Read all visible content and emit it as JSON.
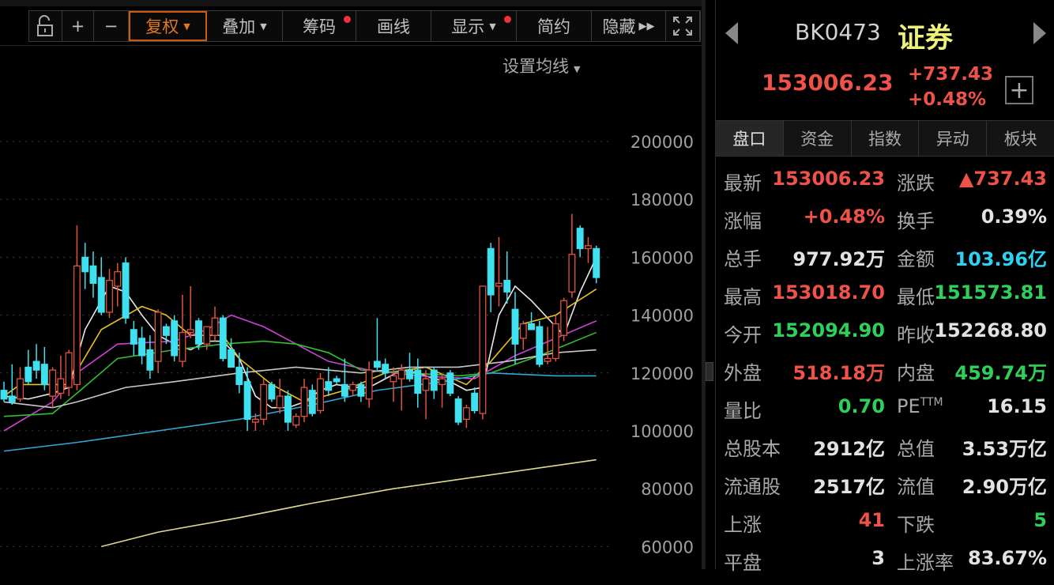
{
  "toolbar": {
    "items": [
      {
        "name": "lock",
        "label": "",
        "icon": "unlock-icon"
      },
      {
        "name": "zoom-in",
        "label": "+"
      },
      {
        "name": "zoom-out",
        "label": "−"
      },
      {
        "name": "fuquan",
        "label": "复权",
        "dropdown": true,
        "active": true
      },
      {
        "name": "overlay",
        "label": "叠加",
        "dropdown": true
      },
      {
        "name": "chips",
        "label": "筹码",
        "dot": true
      },
      {
        "name": "draw",
        "label": "画线"
      },
      {
        "name": "display",
        "label": "显示",
        "dropdown": true,
        "dot": true
      },
      {
        "name": "simple",
        "label": "简约"
      },
      {
        "name": "hide",
        "label": "隐藏",
        "icon": "double-chevron-right-icon"
      },
      {
        "name": "fullscreen",
        "label": "",
        "icon": "fullscreen-icon"
      }
    ],
    "ma_settings": "设置均线"
  },
  "colors": {
    "up": "#e0533d",
    "down": "#3fe0ef",
    "toolbar_active": "#c85d12"
  },
  "chart_data": {
    "type": "candlestick",
    "y_ticks": [
      200000,
      180000,
      160000,
      140000,
      120000,
      100000,
      80000,
      60000
    ],
    "ylim": [
      55000,
      210000
    ],
    "grid": true,
    "candles": [
      [
        114000,
        117000,
        110000,
        111000
      ],
      [
        112000,
        123000,
        109000,
        110000
      ],
      [
        111000,
        122000,
        110000,
        118000
      ],
      [
        122000,
        128000,
        116000,
        117000
      ],
      [
        124000,
        130000,
        118000,
        121000
      ],
      [
        123000,
        129000,
        114000,
        116000
      ],
      [
        112000,
        122000,
        108000,
        121000
      ],
      [
        113000,
        126000,
        111000,
        118000
      ],
      [
        115000,
        128000,
        112000,
        127000
      ],
      [
        116000,
        171000,
        114000,
        157000
      ],
      [
        160000,
        165000,
        149000,
        155000
      ],
      [
        157000,
        162000,
        146000,
        151000
      ],
      [
        153000,
        160000,
        140000,
        141000
      ],
      [
        141000,
        156000,
        139000,
        152000
      ],
      [
        150000,
        158000,
        143000,
        155000
      ],
      [
        158000,
        160000,
        137000,
        139000
      ],
      [
        135000,
        138000,
        126000,
        130000
      ],
      [
        132000,
        136000,
        123000,
        126000
      ],
      [
        128000,
        133000,
        118000,
        121000
      ],
      [
        124000,
        142000,
        120000,
        141000
      ],
      [
        136000,
        137000,
        130000,
        133000
      ],
      [
        138000,
        140000,
        124000,
        126000
      ],
      [
        124000,
        147000,
        122000,
        134000
      ],
      [
        134000,
        150000,
        132000,
        135000
      ],
      [
        138000,
        139000,
        128000,
        130000
      ],
      [
        130000,
        136000,
        128000,
        136000
      ],
      [
        133000,
        143000,
        131000,
        139000
      ],
      [
        139000,
        140000,
        124000,
        125000
      ],
      [
        128000,
        132000,
        122000,
        122000
      ],
      [
        122000,
        127000,
        113000,
        116000
      ],
      [
        117000,
        122000,
        100000,
        104000
      ],
      [
        103000,
        106000,
        100000,
        104000
      ],
      [
        104000,
        118000,
        102000,
        116000
      ],
      [
        116000,
        117000,
        110000,
        111000
      ],
      [
        108000,
        118000,
        106000,
        112000
      ],
      [
        112000,
        114000,
        100000,
        103000
      ],
      [
        102000,
        106000,
        101000,
        105000
      ],
      [
        105000,
        118000,
        103000,
        115000
      ],
      [
        114000,
        116000,
        105000,
        106000
      ],
      [
        107000,
        120000,
        106000,
        118000
      ],
      [
        117000,
        122000,
        112000,
        114000
      ],
      [
        118000,
        119000,
        116000,
        117000
      ],
      [
        116000,
        125000,
        110000,
        112000
      ],
      [
        114000,
        117000,
        112000,
        116000
      ],
      [
        116000,
        117000,
        110000,
        112000
      ],
      [
        111000,
        124000,
        108000,
        121000
      ],
      [
        124000,
        139000,
        121000,
        122000
      ],
      [
        123000,
        125000,
        118000,
        120000
      ],
      [
        117000,
        122000,
        110000,
        119000
      ],
      [
        118000,
        123000,
        107000,
        121000
      ],
      [
        121000,
        127000,
        117000,
        118000
      ],
      [
        121000,
        125000,
        108000,
        113000
      ],
      [
        114000,
        121000,
        104000,
        118000
      ],
      [
        121000,
        122000,
        111000,
        114000
      ],
      [
        116000,
        120000,
        108000,
        118000
      ],
      [
        120000,
        121000,
        112000,
        113000
      ],
      [
        111000,
        112000,
        102000,
        103000
      ],
      [
        104000,
        109000,
        101000,
        108000
      ],
      [
        113000,
        115000,
        106000,
        107000
      ],
      [
        106000,
        150000,
        104000,
        150000
      ],
      [
        163000,
        165000,
        141000,
        147000
      ],
      [
        150000,
        167000,
        143000,
        151000
      ],
      [
        152000,
        162000,
        144000,
        148000
      ],
      [
        142000,
        148000,
        123000,
        130000
      ],
      [
        132000,
        138000,
        128000,
        137000
      ],
      [
        137000,
        141000,
        136000,
        135000
      ],
      [
        136000,
        138000,
        122000,
        123000
      ],
      [
        124000,
        136000,
        123000,
        125000
      ],
      [
        125000,
        140000,
        124000,
        137000
      ],
      [
        133000,
        146000,
        131000,
        145000
      ],
      [
        148000,
        175000,
        146000,
        161000
      ],
      [
        170000,
        171000,
        160000,
        163000
      ],
      [
        163000,
        167000,
        158000,
        164000
      ],
      [
        163000,
        164000,
        151000,
        153000
      ]
    ],
    "ma_lines": [
      {
        "color": "#e8e8e8",
        "points": [
          [
            0,
            112000
          ],
          [
            3,
            111000
          ],
          [
            6,
            113000
          ],
          [
            8,
            115000
          ],
          [
            10,
            135000
          ],
          [
            13,
            150000
          ],
          [
            15,
            148000
          ],
          [
            17,
            140000
          ],
          [
            19,
            133000
          ],
          [
            21,
            130000
          ],
          [
            23,
            128000
          ],
          [
            25,
            131000
          ],
          [
            27,
            131000
          ],
          [
            29,
            125000
          ],
          [
            31,
            112000
          ],
          [
            33,
            108000
          ],
          [
            35,
            108000
          ],
          [
            37,
            110000
          ],
          [
            39,
            114000
          ],
          [
            41,
            116000
          ],
          [
            43,
            115000
          ],
          [
            45,
            115000
          ],
          [
            47,
            118000
          ],
          [
            49,
            121000
          ],
          [
            51,
            120000
          ],
          [
            53,
            118000
          ],
          [
            55,
            117000
          ],
          [
            57,
            114000
          ],
          [
            59,
            115000
          ],
          [
            61,
            140000
          ],
          [
            63,
            150000
          ],
          [
            65,
            145000
          ],
          [
            67,
            139000
          ],
          [
            69,
            133000
          ],
          [
            71,
            148000
          ],
          [
            73,
            160000
          ]
        ]
      },
      {
        "color": "#e8c020",
        "points": [
          [
            0,
            112000
          ],
          [
            2,
            116000
          ],
          [
            8,
            116000
          ],
          [
            12,
            135000
          ],
          [
            17,
            143000
          ],
          [
            20,
            140000
          ],
          [
            23,
            133000
          ],
          [
            27,
            133000
          ],
          [
            29,
            125000
          ],
          [
            33,
            116000
          ],
          [
            37,
            110000
          ],
          [
            42,
            114000
          ],
          [
            47,
            120000
          ],
          [
            52,
            122000
          ],
          [
            57,
            116000
          ],
          [
            60,
            124000
          ],
          [
            64,
            137000
          ],
          [
            68,
            140000
          ],
          [
            73,
            149000
          ]
        ]
      },
      {
        "color": "#d040d8",
        "points": [
          [
            0,
            100000
          ],
          [
            6,
            110000
          ],
          [
            9,
            120000
          ],
          [
            14,
            130000
          ],
          [
            21,
            131000
          ],
          [
            25,
            135000
          ],
          [
            28,
            140000
          ],
          [
            32,
            136000
          ],
          [
            36,
            130000
          ],
          [
            40,
            124000
          ],
          [
            45,
            121000
          ],
          [
            51,
            119000
          ],
          [
            58,
            118000
          ],
          [
            63,
            126000
          ],
          [
            68,
            132000
          ],
          [
            73,
            138000
          ]
        ]
      },
      {
        "color": "#30c030",
        "points": [
          [
            0,
            105000
          ],
          [
            6,
            106000
          ],
          [
            9,
            113000
          ],
          [
            14,
            125000
          ],
          [
            21,
            128000
          ],
          [
            27,
            130000
          ],
          [
            32,
            131000
          ],
          [
            36,
            130000
          ],
          [
            40,
            127000
          ],
          [
            44,
            121000
          ],
          [
            50,
            120000
          ],
          [
            56,
            119000
          ],
          [
            60,
            120000
          ],
          [
            66,
            126000
          ],
          [
            73,
            134000
          ]
        ]
      },
      {
        "color": "#c8c8c8",
        "points": [
          [
            0,
            110000
          ],
          [
            6,
            108000
          ],
          [
            9,
            110000
          ],
          [
            15,
            115000
          ],
          [
            21,
            117000
          ],
          [
            29,
            120000
          ],
          [
            36,
            122000
          ],
          [
            44,
            120000
          ],
          [
            50,
            122000
          ],
          [
            56,
            122000
          ],
          [
            62,
            124000
          ],
          [
            68,
            127000
          ],
          [
            73,
            128000
          ]
        ]
      },
      {
        "color": "#30a8d8",
        "points": [
          [
            0,
            93000
          ],
          [
            9,
            96000
          ],
          [
            19,
            100000
          ],
          [
            29,
            104000
          ],
          [
            38,
            109000
          ],
          [
            46,
            114000
          ],
          [
            54,
            117000
          ],
          [
            60,
            120000
          ],
          [
            68,
            119000
          ],
          [
            73,
            119000
          ]
        ]
      },
      {
        "color": "#e0d890",
        "points": [
          [
            12,
            60000
          ],
          [
            19,
            65000
          ],
          [
            29,
            70000
          ],
          [
            38,
            75000
          ],
          [
            48,
            80000
          ],
          [
            58,
            84000
          ],
          [
            68,
            88000
          ],
          [
            73,
            90000
          ]
        ]
      }
    ]
  },
  "quote": {
    "code": "BK0473",
    "name": "证券",
    "price": "153006.23",
    "change": "+737.43",
    "change_pct": "+0.48%"
  },
  "tabs": [
    "盘口",
    "资金",
    "指数",
    "异动",
    "板块"
  ],
  "stats": [
    {
      "l1": "最新",
      "v1": "153006.23",
      "c1": "red",
      "l2": "涨跌",
      "v2": "▲737.43",
      "c2": "red"
    },
    {
      "l1": "涨幅",
      "v1": "+0.48%",
      "c1": "red",
      "l2": "换手",
      "v2": "0.39%",
      "c2": "white"
    },
    {
      "l1": "总手",
      "v1": "977.92万",
      "c1": "white",
      "l2": "金额",
      "v2": "103.96亿",
      "c2": "cyan"
    },
    {
      "l1": "最高",
      "v1": "153018.70",
      "c1": "red",
      "l2": "最低",
      "v2": "151573.81",
      "c2": "green"
    },
    {
      "l1": "今开",
      "v1": "152094.90",
      "c1": "green",
      "l2": "昨收",
      "v2": "152268.80",
      "c2": "white"
    },
    {
      "l1": "外盘",
      "v1": "518.18万",
      "c1": "red",
      "l2": "内盘",
      "v2": "459.74万",
      "c2": "green"
    },
    {
      "l1": "量比",
      "v1": "0.70",
      "c1": "green",
      "l2": "PE",
      "l2sup": "TTM",
      "v2": "16.15",
      "c2": "white"
    },
    {
      "l1": "总股本",
      "v1": "2912亿",
      "c1": "white",
      "l2": "总值",
      "v2": "3.53万亿",
      "c2": "white"
    },
    {
      "l1": "流通股",
      "v1": "2517亿",
      "c1": "white",
      "l2": "流值",
      "v2": "2.90万亿",
      "c2": "white"
    },
    {
      "l1": "上涨",
      "v1": "41",
      "c1": "red",
      "l2": "下跌",
      "v2": "5",
      "c2": "green"
    },
    {
      "l1": "平盘",
      "v1": "3",
      "c1": "white",
      "l2": "上涨率",
      "v2": "83.67%",
      "c2": "white"
    }
  ]
}
